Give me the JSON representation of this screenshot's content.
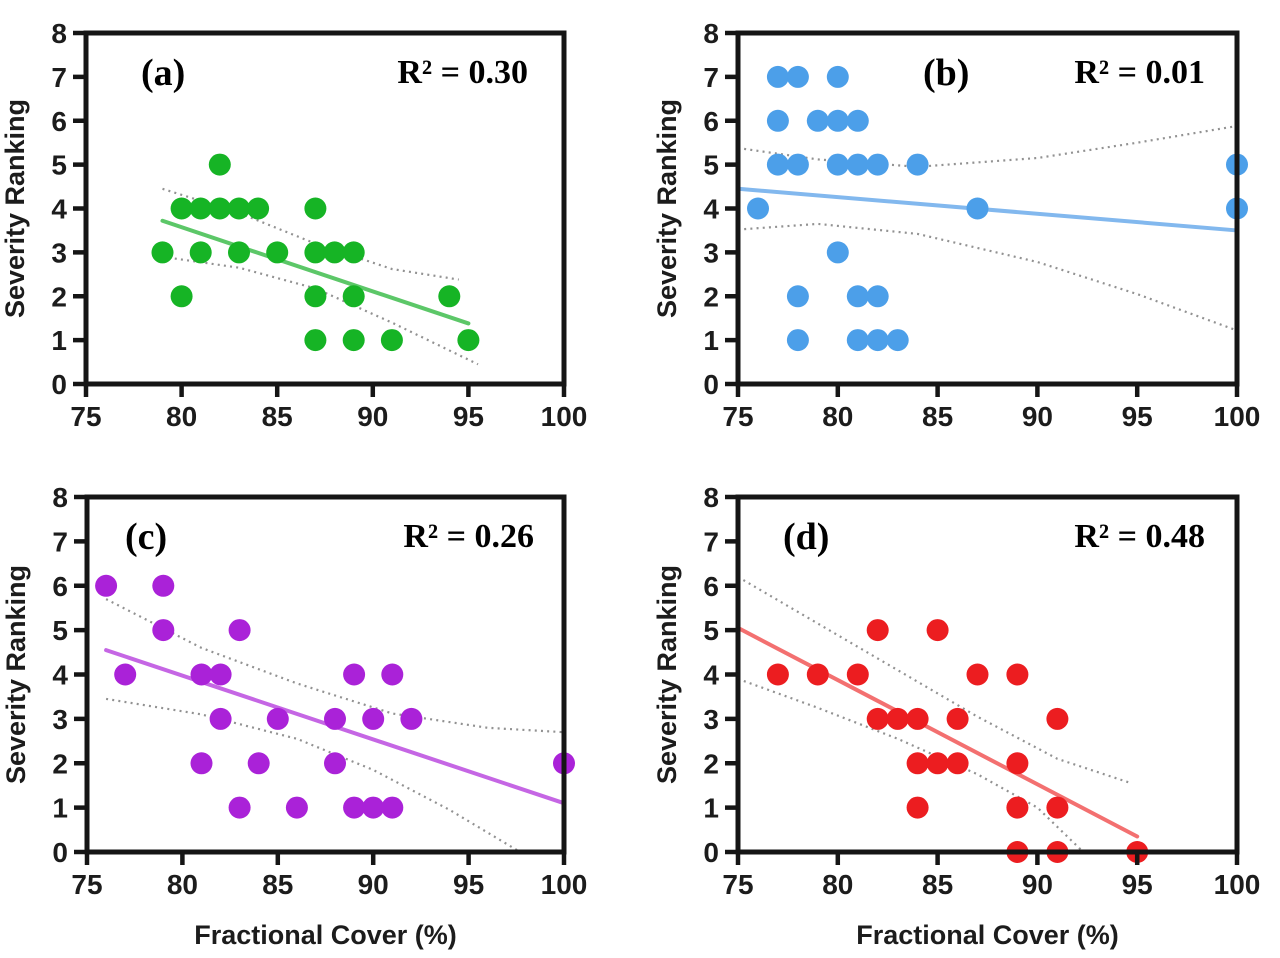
{
  "figure": {
    "background": "#ffffff",
    "axis_color": "#151515",
    "band_color": "#929292",
    "y_axis_label": "Severity Ranking",
    "x_axis_label": "Fractional Cover (%)",
    "x_ticks": [
      75,
      80,
      85,
      90,
      95,
      100
    ],
    "y_ticks": [
      0,
      1,
      2,
      3,
      4,
      5,
      6,
      7,
      8
    ],
    "x_range": [
      75,
      100
    ],
    "y_range": [
      0,
      8
    ]
  },
  "chart_data": [
    {
      "type": "scatter",
      "panel": "a",
      "label": "(a)",
      "r2_text": "R² = 0.30",
      "dot_color": "#16b425",
      "line_color": "#5cc768",
      "xlabel": "Fractional Cover (%)",
      "ylabel": "Severity Ranking",
      "points": [
        [
          82,
          5
        ],
        [
          80,
          4
        ],
        [
          81,
          4
        ],
        [
          82,
          4
        ],
        [
          83,
          4
        ],
        [
          84,
          4
        ],
        [
          87,
          4
        ],
        [
          79,
          3
        ],
        [
          81,
          3
        ],
        [
          83,
          3
        ],
        [
          85,
          3
        ],
        [
          87,
          3
        ],
        [
          88,
          3
        ],
        [
          89,
          3
        ],
        [
          80,
          2
        ],
        [
          87,
          2
        ],
        [
          89,
          2
        ],
        [
          94,
          2
        ],
        [
          87,
          1
        ],
        [
          89,
          1
        ],
        [
          91,
          1
        ],
        [
          95,
          1
        ]
      ],
      "regression": [
        [
          79,
          3.72
        ],
        [
          95,
          1.38
        ]
      ],
      "band_upper": [
        [
          79,
          4.45
        ],
        [
          83,
          3.9
        ],
        [
          87,
          3.2
        ],
        [
          91,
          2.62
        ],
        [
          94.5,
          2.38
        ]
      ],
      "band_lower": [
        [
          79,
          2.9
        ],
        [
          83,
          2.65
        ],
        [
          87,
          2.18
        ],
        [
          91,
          1.4
        ],
        [
          95.5,
          0.45
        ]
      ]
    },
    {
      "type": "scatter",
      "panel": "b",
      "label": "(b)",
      "r2_text": "R² = 0.01",
      "dot_color": "#4c9fe9",
      "line_color": "#82b8ee",
      "xlabel": "Fractional Cover (%)",
      "ylabel": "Severity Ranking",
      "points": [
        [
          77,
          7
        ],
        [
          78,
          7
        ],
        [
          80,
          7
        ],
        [
          77,
          6
        ],
        [
          79,
          6
        ],
        [
          80,
          6
        ],
        [
          81,
          6
        ],
        [
          77,
          5
        ],
        [
          78,
          5
        ],
        [
          80,
          5
        ],
        [
          81,
          5
        ],
        [
          82,
          5
        ],
        [
          84,
          5
        ],
        [
          100,
          5
        ],
        [
          76,
          4
        ],
        [
          87,
          4
        ],
        [
          100,
          4
        ],
        [
          80,
          3
        ],
        [
          78,
          2
        ],
        [
          81,
          2
        ],
        [
          82,
          2
        ],
        [
          78,
          1
        ],
        [
          81,
          1
        ],
        [
          82,
          1
        ],
        [
          83,
          1
        ]
      ],
      "regression": [
        [
          75,
          4.45
        ],
        [
          100,
          3.5
        ]
      ],
      "band_upper": [
        [
          75,
          5.38
        ],
        [
          79,
          5.12
        ],
        [
          84,
          4.95
        ],
        [
          90,
          5.15
        ],
        [
          95,
          5.5
        ],
        [
          100,
          5.88
        ]
      ],
      "band_lower": [
        [
          75,
          3.52
        ],
        [
          79,
          3.65
        ],
        [
          84,
          3.42
        ],
        [
          90,
          2.78
        ],
        [
          95,
          2.05
        ],
        [
          100,
          1.22
        ]
      ]
    },
    {
      "type": "scatter",
      "panel": "c",
      "label": "(c)",
      "r2_text": "R² = 0.26",
      "dot_color": "#aa22d8",
      "line_color": "#c566e4",
      "xlabel": "Fractional Cover (%)",
      "ylabel": "Severity Ranking",
      "points": [
        [
          76,
          6
        ],
        [
          79,
          6
        ],
        [
          79,
          5
        ],
        [
          83,
          5
        ],
        [
          77,
          4
        ],
        [
          81,
          4
        ],
        [
          82,
          4
        ],
        [
          89,
          4
        ],
        [
          91,
          4
        ],
        [
          82,
          3
        ],
        [
          85,
          3
        ],
        [
          88,
          3
        ],
        [
          90,
          3
        ],
        [
          92,
          3
        ],
        [
          81,
          2
        ],
        [
          84,
          2
        ],
        [
          88,
          2
        ],
        [
          100,
          2
        ],
        [
          83,
          1
        ],
        [
          86,
          1
        ],
        [
          89,
          1
        ],
        [
          90,
          1
        ],
        [
          91,
          1
        ]
      ],
      "regression": [
        [
          76,
          4.55
        ],
        [
          100,
          1.1
        ]
      ],
      "band_upper": [
        [
          76,
          5.7
        ],
        [
          81,
          4.6
        ],
        [
          86,
          3.8
        ],
        [
          91,
          3.12
        ],
        [
          96,
          2.8
        ],
        [
          100,
          2.7
        ]
      ],
      "band_lower": [
        [
          76,
          3.45
        ],
        [
          81,
          3.1
        ],
        [
          86,
          2.55
        ],
        [
          90,
          1.85
        ],
        [
          94,
          0.95
        ],
        [
          97.7,
          0
        ]
      ]
    },
    {
      "type": "scatter",
      "panel": "d",
      "label": "(d)",
      "r2_text": "R² = 0.48",
      "dot_color": "#ec1d20",
      "line_color": "#f37070",
      "xlabel": "Fractional Cover (%)",
      "ylabel": "Severity Ranking",
      "points": [
        [
          82,
          5
        ],
        [
          85,
          5
        ],
        [
          77,
          4
        ],
        [
          79,
          4
        ],
        [
          81,
          4
        ],
        [
          87,
          4
        ],
        [
          89,
          4
        ],
        [
          82,
          3
        ],
        [
          83,
          3
        ],
        [
          84,
          3
        ],
        [
          86,
          3
        ],
        [
          91,
          3
        ],
        [
          84,
          2
        ],
        [
          85,
          2
        ],
        [
          86,
          2
        ],
        [
          89,
          2
        ],
        [
          84,
          1
        ],
        [
          89,
          1
        ],
        [
          91,
          1
        ],
        [
          89,
          0
        ],
        [
          91,
          0
        ],
        [
          95,
          0
        ]
      ],
      "regression": [
        [
          75,
          5.05
        ],
        [
          95,
          0.35
        ]
      ],
      "band_upper": [
        [
          75,
          6.2
        ],
        [
          79,
          5.15
        ],
        [
          83,
          4.1
        ],
        [
          87,
          3.05
        ],
        [
          91,
          2.1
        ],
        [
          94.7,
          1.55
        ]
      ],
      "band_lower": [
        [
          75,
          3.9
        ],
        [
          79,
          3.25
        ],
        [
          83,
          2.55
        ],
        [
          87,
          1.75
        ],
        [
          90,
          1.0
        ],
        [
          92.3,
          0
        ]
      ]
    }
  ]
}
